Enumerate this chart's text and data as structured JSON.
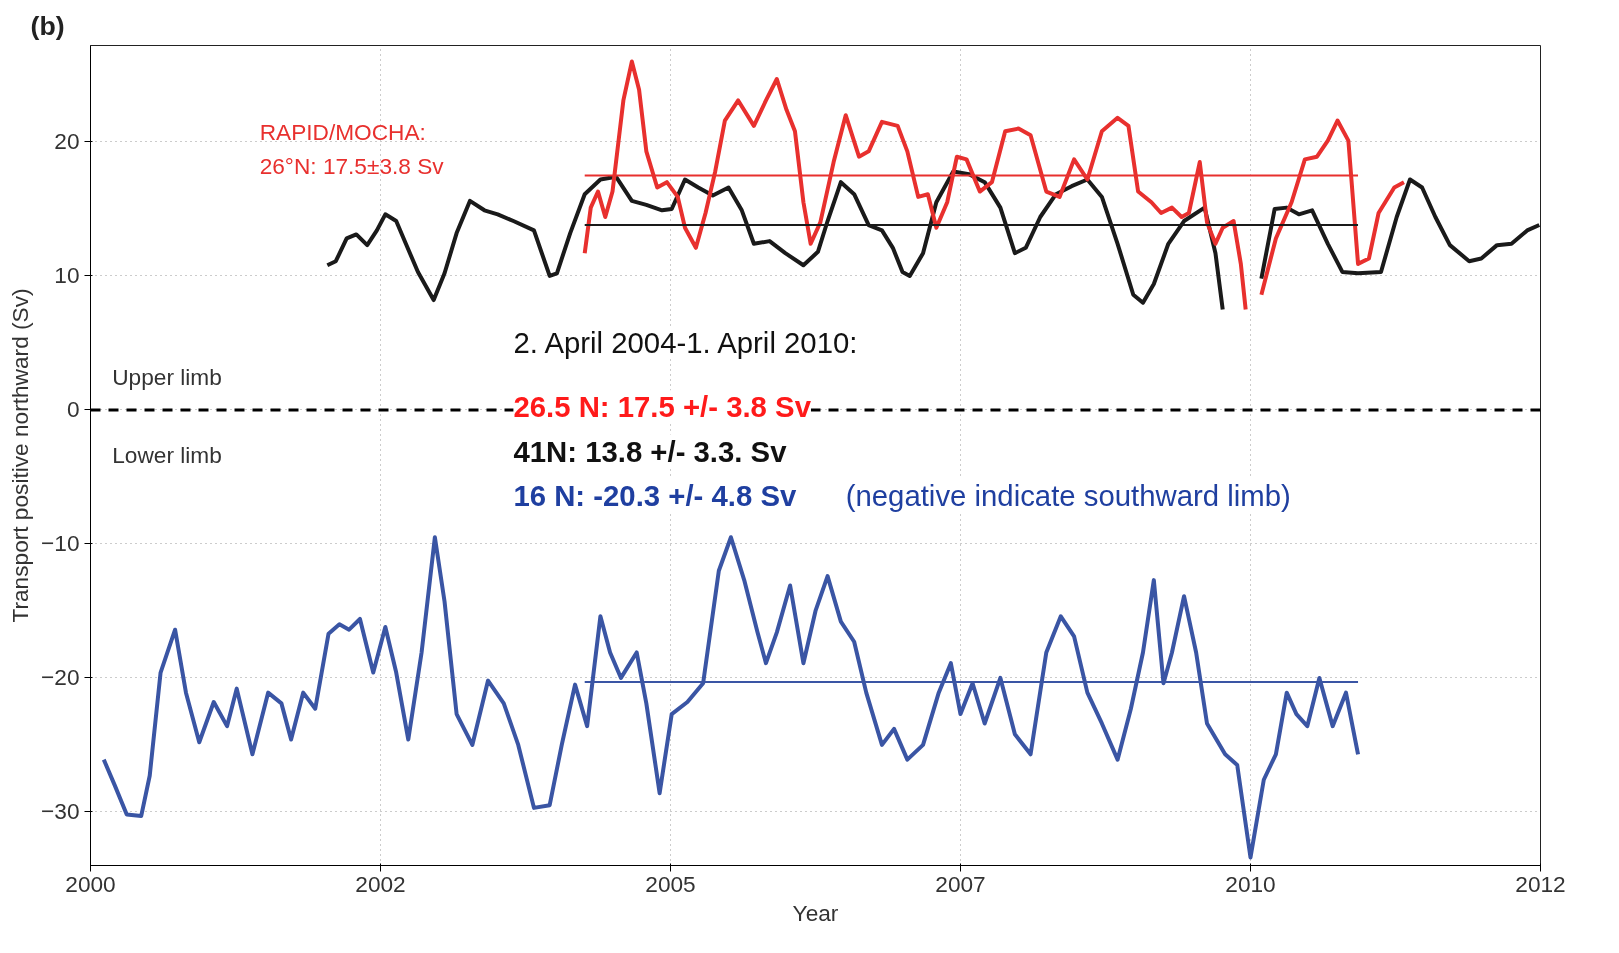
{
  "chart_data": {
    "type": "line",
    "xlabel": "Year",
    "ylabel": "Transport positive northward (Sv)",
    "xlim": [
      2000,
      2012
    ],
    "ylim": [
      -34,
      27.2
    ],
    "xticks": [
      2000,
      {
        "value": 2002.4,
        "label": "2002"
      },
      {
        "value": 2004.8,
        "label": "2005"
      },
      {
        "value": 2007.2,
        "label": "2007"
      },
      {
        "value": 2009.6,
        "label": "2010"
      },
      2012
    ],
    "yticks": [
      -30,
      -20,
      -10,
      0,
      10,
      20
    ],
    "grid": true,
    "line_style": "solid",
    "marker": "none",
    "ref_lines": [
      {
        "axis": "y",
        "value": 0,
        "color": "#000000",
        "line_style": "dashed"
      }
    ],
    "annotations": [
      "(b)",
      "RAPID/MOCHA:",
      "26°N: 17.5±3.8 Sv",
      "Upper limb",
      "Lower limb",
      "2. April 2004-1. April 2010:",
      "26.5 N: 17.5 +/- 3.8 Sv",
      "41N: 13.8 +/- 3.3. Sv",
      "16 N: -20.3 +/- 4.8 Sv",
      "(negative indicate southward limb)"
    ],
    "series": [
      {
        "color": "#1a1a1a",
        "x": [
          2001.96,
          2002.03,
          2002.12,
          2002.2,
          2002.29,
          2002.37,
          2002.44,
          2002.53,
          2002.61,
          2002.71,
          2002.84,
          2002.93,
          2003.03,
          2003.14,
          2003.26,
          2003.37,
          2003.5,
          2003.67,
          2003.8,
          2003.86,
          2003.97,
          2004.09,
          2004.22,
          2004.35,
          2004.48,
          2004.6,
          2004.73,
          2004.81,
          2004.92,
          2005.03,
          2005.15,
          2005.28,
          2005.39,
          2005.49,
          2005.62,
          2005.75,
          2005.9,
          2006.02,
          2006.1,
          2006.21,
          2006.32,
          2006.44,
          2006.55,
          2006.64,
          2006.72,
          2006.78,
          2006.89,
          2007.0,
          2007.14,
          2007.27,
          2007.4,
          2007.53,
          2007.65,
          2007.74,
          2007.86,
          2007.99,
          2008.12,
          2008.25,
          2008.37,
          2008.5,
          2008.63,
          2008.71,
          2008.8,
          2008.92,
          2009.05,
          2009.22,
          2009.31,
          2009.37,
          2009.5,
          2009.69,
          2009.8,
          2009.9,
          2010.0,
          2010.11,
          2010.24,
          2010.36,
          2010.49,
          2010.68,
          2010.81,
          2010.92,
          2011.02,
          2011.13,
          2011.25,
          2011.41,
          2011.51,
          2011.64,
          2011.76,
          2011.89,
          2011.99
        ],
        "values": [
          10.8,
          11.1,
          12.8,
          13.1,
          12.3,
          13.4,
          14.6,
          14.1,
          12.4,
          10.3,
          8.2,
          10.2,
          13.2,
          15.6,
          14.9,
          14.6,
          14.1,
          13.4,
          10.0,
          10.2,
          13.2,
          16.1,
          17.2,
          17.4,
          15.6,
          15.3,
          14.9,
          15.0,
          17.2,
          16.6,
          16.0,
          16.6,
          14.9,
          12.4,
          12.6,
          11.7,
          10.8,
          11.8,
          14.1,
          17.0,
          16.1,
          13.8,
          13.4,
          12.1,
          10.3,
          10.0,
          11.7,
          15.5,
          17.8,
          17.6,
          17.0,
          15.1,
          11.7,
          12.1,
          14.4,
          16.1,
          16.7,
          17.2,
          15.9,
          12.4,
          8.6,
          8.0,
          9.4,
          12.4,
          14.1,
          15.1,
          11.7,
          7.5,
          null,
          9.8,
          15.0,
          15.1,
          14.6,
          14.9,
          12.4,
          10.3,
          10.2,
          10.3,
          14.4,
          17.2,
          16.6,
          14.4,
          12.3,
          11.1,
          11.3,
          12.3,
          12.4,
          13.4,
          13.8
        ]
      },
      {
        "color": "#e8302e",
        "x": [
          2004.09,
          2004.14,
          2004.2,
          2004.26,
          2004.32,
          2004.41,
          2004.48,
          2004.54,
          2004.6,
          2004.69,
          2004.77,
          2004.86,
          2004.92,
          2005.01,
          2005.09,
          2005.17,
          2005.25,
          2005.36,
          2005.49,
          2005.59,
          2005.68,
          2005.76,
          2005.83,
          2005.9,
          2005.96,
          2006.04,
          2006.15,
          2006.25,
          2006.36,
          2006.44,
          2006.55,
          2006.68,
          2006.76,
          2006.85,
          2006.93,
          2007.0,
          2007.09,
          2007.17,
          2007.25,
          2007.36,
          2007.46,
          2007.57,
          2007.68,
          2007.78,
          2007.91,
          2008.02,
          2008.14,
          2008.25,
          2008.37,
          2008.5,
          2008.59,
          2008.67,
          2008.78,
          2008.86,
          2008.95,
          2009.03,
          2009.09,
          2009.18,
          2009.24,
          2009.31,
          2009.37,
          2009.46,
          2009.52,
          2009.56,
          2009.6,
          2009.69,
          2009.81,
          2009.94,
          2010.05,
          2010.15,
          2010.24,
          2010.32,
          2010.41,
          2010.49,
          2010.58,
          2010.66,
          2010.79,
          2010.87
        ],
        "values": [
          11.7,
          15.1,
          16.3,
          14.4,
          16.3,
          23.1,
          26.0,
          23.9,
          19.3,
          16.6,
          17.0,
          15.9,
          13.6,
          12.1,
          14.7,
          17.8,
          21.6,
          23.1,
          21.2,
          23.1,
          24.7,
          22.4,
          20.8,
          15.5,
          12.4,
          14.0,
          18.5,
          22.0,
          18.9,
          19.3,
          21.5,
          21.2,
          19.3,
          15.9,
          16.1,
          13.6,
          15.5,
          18.9,
          18.7,
          16.3,
          17.0,
          20.8,
          21.0,
          20.5,
          16.3,
          15.9,
          18.7,
          17.2,
          20.8,
          21.8,
          21.2,
          16.3,
          15.5,
          14.7,
          15.1,
          14.4,
          14.7,
          18.5,
          14.0,
          12.4,
          13.6,
          14.1,
          10.9,
          7.5,
          null,
          8.6,
          12.8,
          15.5,
          18.7,
          18.9,
          20.1,
          21.6,
          20.1,
          10.9,
          11.3,
          14.7,
          16.6,
          17.0
        ]
      },
      {
        "color": "#3a55a4",
        "x": [
          2000.11,
          2000.2,
          2000.3,
          2000.42,
          2000.49,
          2000.58,
          2000.7,
          2000.79,
          2000.9,
          2001.02,
          2001.13,
          2001.21,
          2001.34,
          2001.47,
          2001.58,
          2001.66,
          2001.76,
          2001.86,
          2001.97,
          2002.06,
          2002.14,
          2002.23,
          2002.34,
          2002.44,
          2002.53,
          2002.63,
          2002.74,
          2002.85,
          2002.93,
          2003.03,
          2003.16,
          2003.29,
          2003.42,
          2003.54,
          2003.67,
          2003.8,
          2003.9,
          2004.01,
          2004.11,
          2004.22,
          2004.3,
          2004.39,
          2004.52,
          2004.6,
          2004.71,
          2004.81,
          2004.94,
          2005.07,
          2005.2,
          2005.3,
          2005.41,
          2005.52,
          2005.59,
          2005.68,
          2005.79,
          2005.9,
          2006.0,
          2006.1,
          2006.21,
          2006.32,
          2006.42,
          2006.55,
          2006.65,
          2006.76,
          2006.89,
          2007.02,
          2007.12,
          2007.2,
          2007.3,
          2007.4,
          2007.53,
          2007.65,
          2007.78,
          2007.91,
          2008.03,
          2008.14,
          2008.25,
          2008.37,
          2008.5,
          2008.61,
          2008.71,
          2008.8,
          2008.88,
          2008.95,
          2009.05,
          2009.15,
          2009.24,
          2009.39,
          2009.49,
          2009.6,
          2009.71,
          2009.81,
          2009.9,
          2009.98,
          2010.07,
          2010.17,
          2010.28,
          2010.39,
          2010.49
        ],
        "values": [
          -26.1,
          -28.0,
          -30.2,
          -30.3,
          -27.3,
          -19.6,
          -16.4,
          -21.1,
          -24.8,
          -21.8,
          -23.6,
          -20.8,
          -25.7,
          -21.1,
          -21.9,
          -24.6,
          -21.1,
          -22.3,
          -16.7,
          -16.0,
          -16.4,
          -15.6,
          -19.6,
          -16.2,
          -19.6,
          -24.6,
          -18.1,
          -9.5,
          -14.3,
          -22.7,
          -25.0,
          -20.2,
          -21.9,
          -25.0,
          -29.7,
          -29.5,
          -25.0,
          -20.5,
          -23.6,
          -15.4,
          -18.1,
          -20.0,
          -18.1,
          -21.9,
          -28.6,
          -22.7,
          -21.8,
          -20.4,
          -12.0,
          -9.5,
          -12.7,
          -16.6,
          -18.9,
          -16.6,
          -13.1,
          -18.9,
          -15.0,
          -12.4,
          -15.8,
          -17.3,
          -21.1,
          -25.0,
          -23.8,
          -26.1,
          -25.0,
          -21.1,
          -18.9,
          -22.7,
          -20.4,
          -23.4,
          -20.0,
          -24.2,
          -25.7,
          -18.1,
          -15.4,
          -16.9,
          -21.1,
          -23.4,
          -26.1,
          -22.3,
          -18.1,
          -12.7,
          -20.4,
          -18.1,
          -13.9,
          -18.1,
          -23.4,
          -25.7,
          -26.5,
          -33.4,
          -27.6,
          -25.7,
          -21.1,
          -22.7,
          -23.6,
          -20.0,
          -23.6,
          -21.1,
          -25.7
        ]
      },
      {
        "color": "#e8302e",
        "x": [
          2004.09,
          2010.49
        ],
        "values": [
          17.5,
          17.5
        ]
      },
      {
        "color": "#1a1a1a",
        "x": [
          2004.09,
          2010.49
        ],
        "values": [
          13.8,
          13.8
        ]
      },
      {
        "color": "#3a55a4",
        "x": [
          2004.09,
          2010.49
        ],
        "values": [
          -20.3,
          -20.3
        ]
      }
    ]
  }
}
